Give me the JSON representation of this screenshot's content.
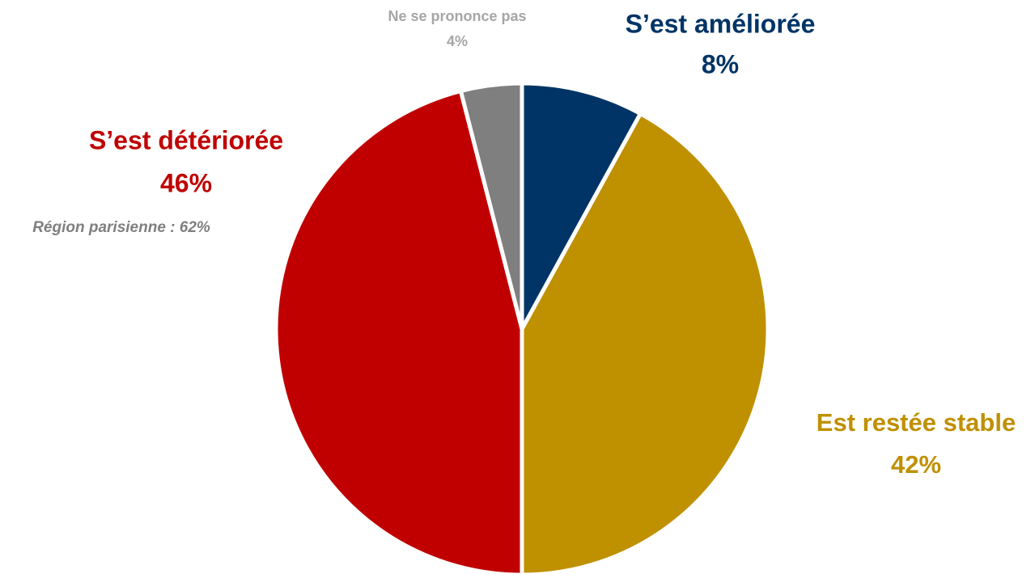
{
  "chart_data": {
    "type": "pie",
    "categories": [
      "S’est améliorée",
      "Est restée stable",
      "S’est détériorée",
      "Ne se prononce pas"
    ],
    "values": [
      8,
      42,
      46,
      4
    ],
    "value_labels": [
      "8%",
      "42%",
      "46%",
      "4%"
    ],
    "colors": [
      "#003466",
      "#bf9000",
      "#c00000",
      "#7f7f7f"
    ],
    "annotation": "Région parisienne : 62%"
  }
}
